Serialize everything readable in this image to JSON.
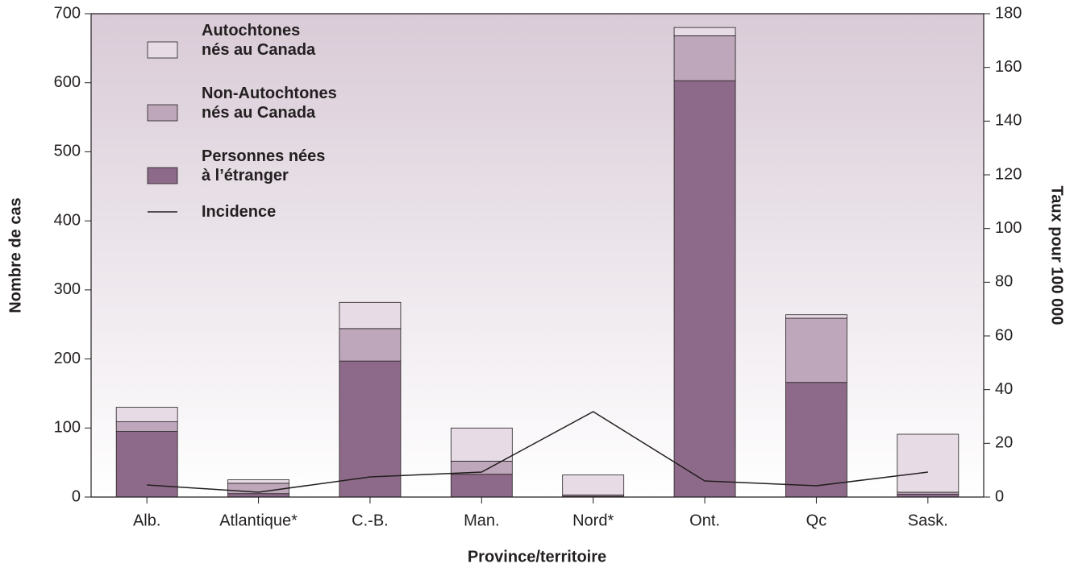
{
  "chart_data": {
    "type": "bar",
    "stacked": true,
    "xlabel": "Province/territoire",
    "ylabel": "Nombre de cas",
    "y2label": "Taux pour 100 000",
    "categories": [
      "Alb.",
      "Atlantique*",
      "C.-B.",
      "Man.",
      "Nord*",
      "Ont.",
      "Qc",
      "Sask."
    ],
    "series": [
      {
        "name": "Autochtones\nnés au Canada",
        "type": "bar",
        "color": "#e7dbe5",
        "values": [
          21,
          5,
          38,
          48,
          29,
          12,
          5,
          84
        ]
      },
      {
        "name": "Non-Autochtones\nnés au Canada",
        "type": "bar",
        "color": "#bea6bb",
        "values": [
          14,
          15,
          47,
          19,
          2,
          65,
          93,
          3
        ]
      },
      {
        "name": "Personnes nées\nà l’étranger",
        "type": "bar",
        "color": "#8d6a89",
        "values": [
          95,
          5,
          197,
          33,
          1,
          603,
          166,
          4
        ]
      },
      {
        "name": "Incidence",
        "type": "line",
        "axis": "y2",
        "color": "#231f20",
        "values": [
          4.5,
          1.8,
          7.5,
          9.3,
          31.8,
          6,
          4.2,
          9.3
        ]
      }
    ],
    "ylim": [
      0,
      700
    ],
    "yticks": [
      0,
      100,
      200,
      300,
      400,
      500,
      600,
      700
    ],
    "y2lim": [
      0,
      180
    ],
    "y2ticks": [
      0,
      20,
      40,
      60,
      80,
      100,
      120,
      140,
      160,
      180
    ]
  }
}
